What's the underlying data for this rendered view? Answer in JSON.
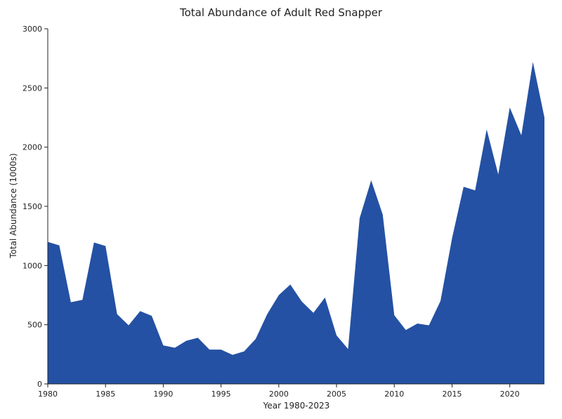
{
  "chart_data": {
    "type": "area",
    "title": "Total Abundance of Adult Red Snapper",
    "xlabel": "Year 1980-2023",
    "ylabel": "Total Abundance (1000s)",
    "xlim": [
      1980,
      2023
    ],
    "ylim": [
      0,
      3000
    ],
    "x_ticks": [
      1980,
      1985,
      1990,
      1995,
      2000,
      2005,
      2010,
      2015,
      2020
    ],
    "y_ticks": [
      0,
      500,
      1000,
      1500,
      2000,
      2500,
      3000
    ],
    "grid": false,
    "fill_color": "#2451a3",
    "series": [
      {
        "x": [
          1980,
          1981,
          1982,
          1983,
          1984,
          1985,
          1986,
          1987,
          1988,
          1989,
          1990,
          1991,
          1992,
          1993,
          1994,
          1995,
          1996,
          1997,
          1998,
          1999,
          2000,
          2001,
          2002,
          2003,
          2004,
          2005,
          2006,
          2007,
          2008,
          2009,
          2010,
          2011,
          2012,
          2013,
          2014,
          2015,
          2016,
          2017,
          2018,
          2019,
          2020,
          2021,
          2022,
          2023
        ],
        "values": [
          1200,
          1170,
          690,
          710,
          1195,
          1165,
          590,
          495,
          615,
          575,
          325,
          305,
          365,
          390,
          290,
          290,
          245,
          275,
          380,
          590,
          750,
          840,
          695,
          600,
          730,
          410,
          295,
          1400,
          1720,
          1430,
          580,
          455,
          510,
          495,
          700,
          1230,
          1665,
          1635,
          2150,
          1770,
          2335,
          2100,
          2720,
          2250
        ]
      }
    ]
  }
}
